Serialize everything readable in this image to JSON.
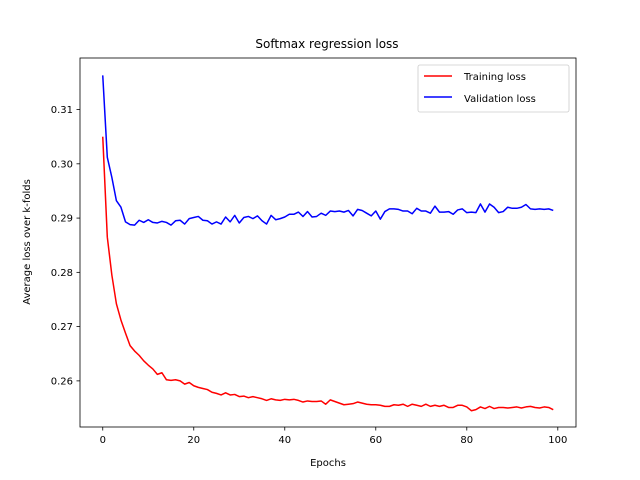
{
  "chart_data": {
    "type": "line",
    "title": "Softmax regression loss",
    "xlabel": "Epochs",
    "ylabel": "Average loss over k-folds",
    "xlim": [
      -5,
      104
    ],
    "ylim": [
      0.2515,
      0.3195
    ],
    "xticks": [
      0,
      20,
      40,
      60,
      80,
      100
    ],
    "yticks": [
      0.26,
      0.27,
      0.28,
      0.29,
      0.3,
      0.31
    ],
    "ytick_labels": [
      "0.26",
      "0.27",
      "0.28",
      "0.29",
      "0.30",
      "0.31"
    ],
    "grid": false,
    "legend": {
      "position": "top-right"
    },
    "series": [
      {
        "name": "Training loss",
        "color": "#ff0000",
        "x": [
          0,
          1,
          2,
          3,
          4,
          5,
          6,
          7,
          8,
          9,
          10,
          11,
          12,
          13,
          14,
          15,
          16,
          17,
          18,
          19,
          20,
          21,
          22,
          23,
          24,
          25,
          26,
          27,
          28,
          29,
          30,
          31,
          32,
          33,
          34,
          35,
          36,
          37,
          38,
          39,
          40,
          41,
          42,
          43,
          44,
          45,
          46,
          47,
          48,
          49,
          50,
          51,
          52,
          53,
          54,
          55,
          56,
          57,
          58,
          59,
          60,
          61,
          62,
          63,
          64,
          65,
          66,
          67,
          68,
          69,
          70,
          71,
          72,
          73,
          74,
          75,
          76,
          77,
          78,
          79,
          80,
          81,
          82,
          83,
          84,
          85,
          86,
          87,
          88,
          89,
          90,
          91,
          92,
          93,
          94,
          95,
          96,
          97,
          98,
          99
        ],
        "values": [
          0.305,
          0.2865,
          0.2795,
          0.2742,
          0.2712,
          0.2688,
          0.2665,
          0.2655,
          0.2647,
          0.2637,
          0.2629,
          0.2622,
          0.2612,
          0.2615,
          0.2602,
          0.2601,
          0.2602,
          0.26,
          0.2594,
          0.2597,
          0.2591,
          0.2588,
          0.2586,
          0.2584,
          0.2579,
          0.2577,
          0.2574,
          0.2578,
          0.2574,
          0.2575,
          0.2571,
          0.2572,
          0.2569,
          0.2571,
          0.2569,
          0.2567,
          0.2564,
          0.2567,
          0.2565,
          0.2564,
          0.2566,
          0.2565,
          0.2566,
          0.2564,
          0.2561,
          0.2563,
          0.2562,
          0.2562,
          0.2563,
          0.2557,
          0.2565,
          0.2562,
          0.2559,
          0.2556,
          0.2557,
          0.2558,
          0.2561,
          0.2559,
          0.2557,
          0.2556,
          0.2556,
          0.2555,
          0.2553,
          0.2553,
          0.2556,
          0.2555,
          0.2557,
          0.2553,
          0.2557,
          0.2555,
          0.2553,
          0.2557,
          0.2553,
          0.2555,
          0.2553,
          0.2555,
          0.2551,
          0.2551,
          0.2555,
          0.2555,
          0.2552,
          0.2545,
          0.2547,
          0.2552,
          0.2549,
          0.2553,
          0.2549,
          0.2551,
          0.2551,
          0.255,
          0.2551,
          0.2552,
          0.255,
          0.2552,
          0.2553,
          0.2551,
          0.255,
          0.2552,
          0.2551,
          0.2547
        ]
      },
      {
        "name": "Validation loss",
        "color": "#0000ff",
        "x": [
          0,
          1,
          2,
          3,
          4,
          5,
          6,
          7,
          8,
          9,
          10,
          11,
          12,
          13,
          14,
          15,
          16,
          17,
          18,
          19,
          20,
          21,
          22,
          23,
          24,
          25,
          26,
          27,
          28,
          29,
          30,
          31,
          32,
          33,
          34,
          35,
          36,
          37,
          38,
          39,
          40,
          41,
          42,
          43,
          44,
          45,
          46,
          47,
          48,
          49,
          50,
          51,
          52,
          53,
          54,
          55,
          56,
          57,
          58,
          59,
          60,
          61,
          62,
          63,
          64,
          65,
          66,
          67,
          68,
          69,
          70,
          71,
          72,
          73,
          74,
          75,
          76,
          77,
          78,
          79,
          80,
          81,
          82,
          83,
          84,
          85,
          86,
          87,
          88,
          89,
          90,
          91,
          92,
          93,
          94,
          95,
          96,
          97,
          98,
          99
        ],
        "values": [
          0.3163,
          0.3012,
          0.2975,
          0.2932,
          0.292,
          0.2893,
          0.2888,
          0.2887,
          0.2896,
          0.2892,
          0.2897,
          0.2892,
          0.2891,
          0.2894,
          0.2892,
          0.2887,
          0.2895,
          0.2896,
          0.2889,
          0.2899,
          0.2901,
          0.2903,
          0.2896,
          0.2895,
          0.2889,
          0.2893,
          0.2889,
          0.2902,
          0.2893,
          0.2905,
          0.2891,
          0.2901,
          0.2903,
          0.2899,
          0.2904,
          0.2895,
          0.2889,
          0.2905,
          0.2897,
          0.2899,
          0.2902,
          0.2907,
          0.2907,
          0.2911,
          0.2903,
          0.2912,
          0.2902,
          0.2903,
          0.2909,
          0.2905,
          0.2913,
          0.2912,
          0.2913,
          0.2911,
          0.2914,
          0.2904,
          0.2916,
          0.2914,
          0.2909,
          0.2904,
          0.2913,
          0.2898,
          0.2912,
          0.2917,
          0.2917,
          0.2916,
          0.2913,
          0.2913,
          0.2908,
          0.2918,
          0.2913,
          0.2913,
          0.2909,
          0.2922,
          0.2911,
          0.2911,
          0.2912,
          0.2907,
          0.2915,
          0.2917,
          0.291,
          0.2911,
          0.291,
          0.2926,
          0.2911,
          0.2926,
          0.292,
          0.291,
          0.2912,
          0.292,
          0.2918,
          0.2918,
          0.292,
          0.2925,
          0.2917,
          0.2916,
          0.2917,
          0.2916,
          0.2917,
          0.2914
        ]
      }
    ]
  }
}
